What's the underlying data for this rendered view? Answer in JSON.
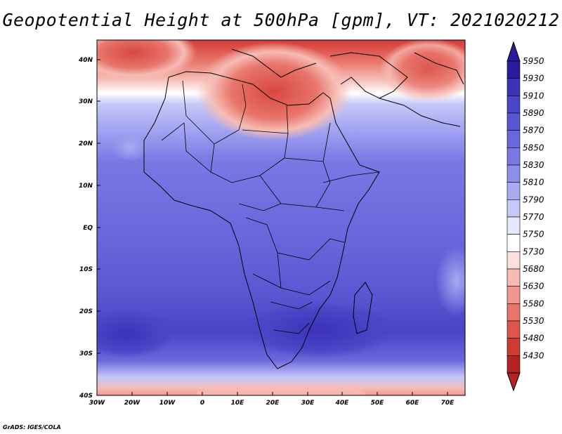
{
  "title": "Geopotential Height at 500hPa [gpm], VT: 2021020212",
  "credit": "GrADS: IGES/COLA",
  "lat_labels": [
    "40N",
    "30N",
    "20N",
    "10N",
    "EQ",
    "10S",
    "20S",
    "30S",
    "40S"
  ],
  "lon_labels": [
    "30W",
    "20W",
    "10W",
    "0",
    "10E",
    "20E",
    "30E",
    "40E",
    "50E",
    "60E",
    "70E"
  ],
  "colorbar": {
    "levels": [
      "5950",
      "5930",
      "5910",
      "5890",
      "5870",
      "5850",
      "5830",
      "5810",
      "5790",
      "5770",
      "5750",
      "5730",
      "5680",
      "5630",
      "5580",
      "5530",
      "5480",
      "5430"
    ],
    "colors": [
      "#2b1a9e",
      "#3b32b8",
      "#4a44c6",
      "#5a56d2",
      "#6a66dc",
      "#7a78e4",
      "#8e8eec",
      "#a8aaf2",
      "#c6c8f8",
      "#e6e8fc",
      "#ffffff",
      "#fbe0dc",
      "#f6bcb4",
      "#f0968e",
      "#e8756c",
      "#de554c",
      "#cf3a33",
      "#b42222"
    ]
  },
  "map": {
    "lat_range": [
      -40,
      45
    ],
    "lon_range": [
      -30,
      75
    ]
  }
}
